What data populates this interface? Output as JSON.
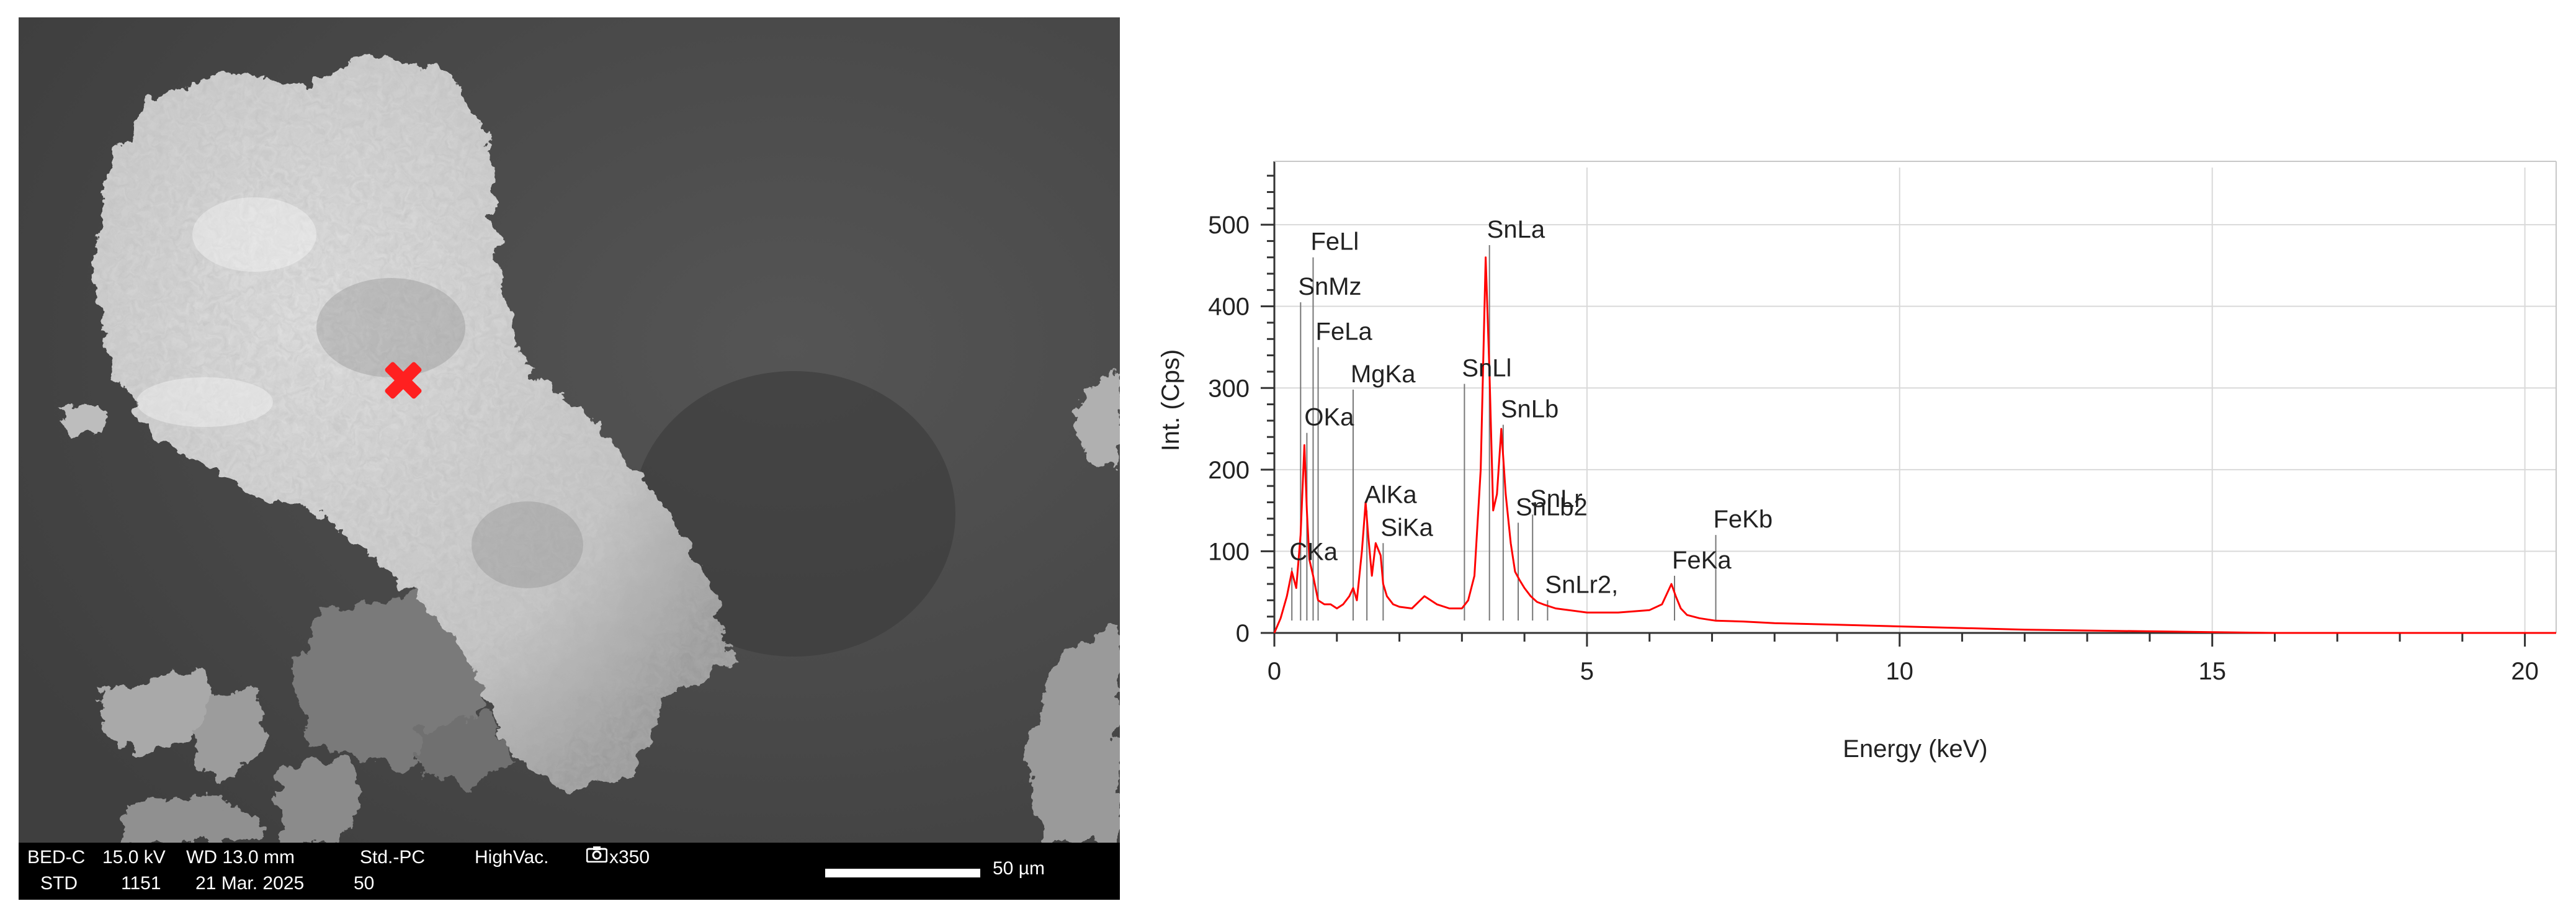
{
  "sem": {
    "footer": {
      "detector": "BED-C",
      "voltage": "15.0 kV",
      "wd": "WD 13.0 mm",
      "mode": "Std.-PC",
      "vacuum": "HighVac.",
      "magnification": "x350",
      "std": "STD",
      "frame": "1151",
      "date": "21 Mar. 2025",
      "count": "50",
      "scale_label": "50 µm"
    },
    "marker_color": "#ff2020"
  },
  "chart_data": {
    "type": "line",
    "xlabel": "Energy (keV)",
    "ylabel": "Int. (Cps)",
    "xlim": [
      0,
      20.5
    ],
    "ylim": [
      0,
      570
    ],
    "xticks": [
      0,
      5,
      10,
      15,
      20
    ],
    "yticks": [
      0,
      100,
      200,
      300,
      400,
      500
    ],
    "grid": true,
    "series_color": "#ff0000",
    "series": [
      {
        "x": [
          0.0,
          0.1,
          0.2,
          0.28,
          0.35,
          0.42,
          0.48,
          0.52,
          0.56,
          0.62,
          0.7,
          0.8,
          0.9,
          1.0,
          1.1,
          1.2,
          1.26,
          1.32,
          1.4,
          1.46,
          1.5,
          1.56,
          1.62,
          1.7,
          1.74,
          1.8,
          1.9,
          2.0,
          2.2,
          2.4,
          2.6,
          2.8,
          3.0,
          3.1,
          3.2,
          3.3,
          3.38,
          3.44,
          3.5,
          3.56,
          3.63,
          3.7,
          3.78,
          3.85,
          3.92,
          4.0,
          4.1,
          4.2,
          4.3,
          4.5,
          5.0,
          5.5,
          6.0,
          6.2,
          6.35,
          6.42,
          6.5,
          6.6,
          6.8,
          7.06,
          7.5,
          8.0,
          9.0,
          10.0,
          11.0,
          12.0,
          13.0,
          14.0,
          15.0,
          16.0,
          20.5
        ],
        "y": [
          0,
          18,
          45,
          75,
          55,
          120,
          230,
          150,
          90,
          70,
          40,
          35,
          35,
          30,
          35,
          45,
          55,
          40,
          100,
          160,
          120,
          70,
          110,
          95,
          60,
          45,
          35,
          32,
          30,
          45,
          35,
          30,
          30,
          40,
          70,
          200,
          460,
          320,
          150,
          170,
          250,
          170,
          110,
          75,
          65,
          55,
          45,
          38,
          35,
          30,
          25,
          25,
          28,
          35,
          60,
          45,
          30,
          22,
          18,
          15,
          14,
          12,
          10,
          8,
          6,
          4,
          3,
          2,
          1,
          0,
          0
        ]
      }
    ],
    "peak_labels": [
      {
        "text": "FeLl",
        "x": 0.62,
        "top": 460
      },
      {
        "text": "SnMz",
        "x": 0.42,
        "top": 405
      },
      {
        "text": "FeLa",
        "x": 0.7,
        "top": 350
      },
      {
        "text": "MgKa",
        "x": 1.26,
        "top": 298
      },
      {
        "text": "OKa",
        "x": 0.52,
        "top": 245
      },
      {
        "text": "AlKa",
        "x": 1.48,
        "top": 150
      },
      {
        "text": "SiKa",
        "x": 1.74,
        "top": 110
      },
      {
        "text": "CKa",
        "x": 0.28,
        "top": 80
      },
      {
        "text": "SnLa",
        "x": 3.44,
        "top": 475
      },
      {
        "text": "SnLl",
        "x": 3.04,
        "top": 305
      },
      {
        "text": "SnLb",
        "x": 3.66,
        "top": 255
      },
      {
        "text": "SnLr",
        "x": 4.13,
        "top": 145
      },
      {
        "text": "SnLb2",
        "x": 3.9,
        "top": 135
      },
      {
        "text": "SnLr2,",
        "x": 4.37,
        "top": 40
      },
      {
        "text": "FeKa",
        "x": 6.4,
        "top": 70
      },
      {
        "text": "FeKb",
        "x": 7.06,
        "top": 120
      }
    ]
  }
}
